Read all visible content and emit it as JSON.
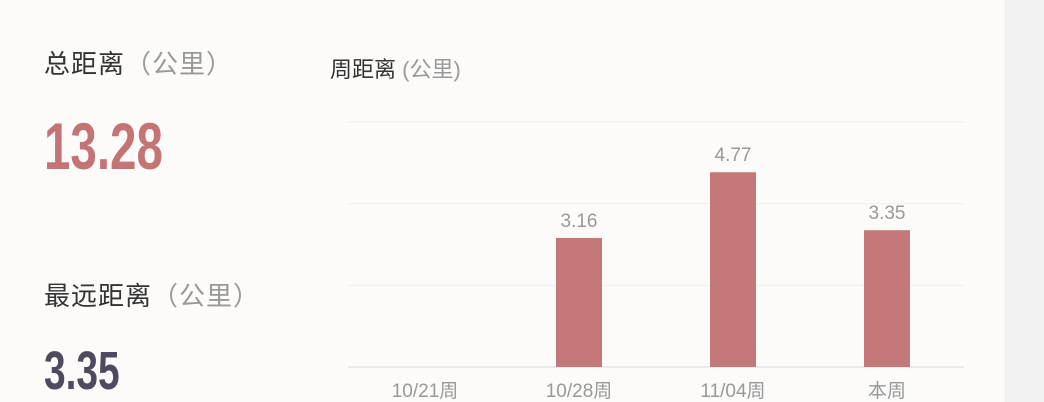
{
  "summary": {
    "total_label": "总距离",
    "total_unit": "（公里）",
    "total_value": "13.28",
    "farthest_label": "最远距离",
    "farthest_unit": "（公里）",
    "farthest_value": "3.35"
  },
  "chart_data": {
    "type": "bar",
    "title": "周距离",
    "title_unit": "(公里)",
    "categories": [
      "10/21周",
      "10/28周",
      "11/04周",
      "本周"
    ],
    "values": [
      0,
      3.16,
      4.77,
      3.35
    ],
    "value_labels": [
      "",
      "3.16",
      "4.77",
      "3.35"
    ],
    "ylim": [
      0,
      6
    ],
    "grid": true,
    "legend": "none",
    "bar_color": "#c47878"
  },
  "colors": {
    "total_value": "#c47474",
    "farthest_value": "#4f4a5c"
  }
}
